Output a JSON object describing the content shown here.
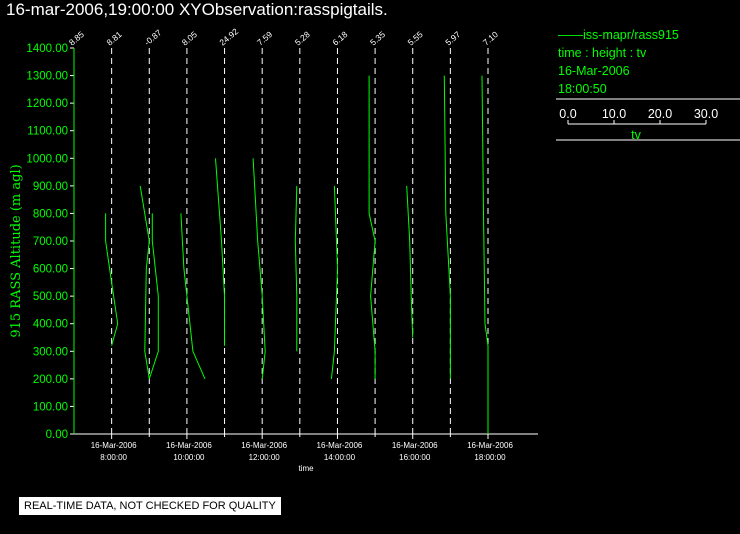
{
  "header": {
    "title": "16-mar-2006,19:00:00  XYObservation:rasspigtails."
  },
  "legend": {
    "series_line": "——iss-mapr/rass915",
    "desc": "time : height : tv",
    "date": "16-Mar-2006",
    "time": "18:00:50",
    "scale_ticks": [
      "0.0",
      "10.0",
      "20.0",
      "30.0"
    ],
    "scale_label": "tv"
  },
  "footer": {
    "notice": "REAL-TIME DATA, NOT CHECKED FOR QUALITY"
  },
  "colors": {
    "background": "#000000",
    "data": "#00ff00",
    "text": "#ffffff"
  },
  "chart_data": {
    "type": "line",
    "title": "16-mar-2006,19:00:00  XYObservation:rasspigtails.",
    "ylabel": "915 RASS Altitude (m agl)",
    "xlabel": "time",
    "ylim": [
      0,
      1400
    ],
    "y_ticks": [
      "0.00",
      "100.00",
      "200.00",
      "300.00",
      "400.00",
      "500.00",
      "600.00",
      "700.00",
      "800.00",
      "900.00",
      "1000.00",
      "1100.00",
      "1200.00",
      "1300.00",
      "1400.00"
    ],
    "x_ticks": [
      {
        "date": "16-Mar-2006",
        "time": "8:00:00",
        "hour": 8
      },
      {
        "date": "16-Mar-2006",
        "time": "10:00:00",
        "hour": 10
      },
      {
        "date": "16-Mar-2006",
        "time": "12:00:00",
        "hour": 12
      },
      {
        "date": "16-Mar-2006",
        "time": "14:00:00",
        "hour": 14
      },
      {
        "date": "16-Mar-2006",
        "time": "16:00:00",
        "hour": 16
      },
      {
        "date": "16-Mar-2006",
        "time": "18:00:00",
        "hour": 18
      }
    ],
    "xlim": [
      7.0,
      19.7
    ],
    "grid": false,
    "profiles": [
      {
        "hour": 7.0,
        "baseline_label": "8.85",
        "points": [
          [
            0,
            1400
          ],
          [
            0,
            0
          ]
        ]
      },
      {
        "hour": 8.0,
        "baseline_label": "8.81",
        "points": [
          [
            -0.4,
            800
          ],
          [
            -0.4,
            700
          ],
          [
            0,
            550
          ],
          [
            0.4,
            400
          ],
          [
            0,
            320
          ]
        ]
      },
      {
        "hour": 9.0,
        "baseline_label": "-0.87",
        "points": [
          [
            -0.6,
            900
          ],
          [
            0,
            700
          ],
          [
            -0.2,
            600
          ],
          [
            -0.3,
            300
          ],
          [
            0,
            200
          ],
          [
            0.6,
            300
          ],
          [
            0.6,
            500
          ],
          [
            0.2,
            700
          ],
          [
            0.2,
            800
          ]
        ]
      },
      {
        "hour": 10.0,
        "baseline_label": "8.05",
        "points": [
          [
            -0.4,
            800
          ],
          [
            -0.2,
            600
          ],
          [
            0,
            500
          ],
          [
            0.2,
            400
          ],
          [
            0.4,
            300
          ],
          [
            1.2,
            200
          ]
        ]
      },
      {
        "hour": 11.0,
        "baseline_label": "24.92",
        "points": [
          [
            -0.6,
            1000
          ],
          [
            -0.2,
            700
          ],
          [
            0,
            500
          ],
          [
            0,
            320
          ]
        ]
      },
      {
        "hour": 12.0,
        "baseline_label": "7.59",
        "points": [
          [
            -0.6,
            1000
          ],
          [
            -0.3,
            700
          ],
          [
            0,
            500
          ],
          [
            0.2,
            300
          ],
          [
            0,
            200
          ]
        ]
      },
      {
        "hour": 13.0,
        "baseline_label": "5.28",
        "points": [
          [
            -0.2,
            900
          ],
          [
            -0.3,
            700
          ],
          [
            -0.2,
            500
          ],
          [
            -0.2,
            300
          ]
        ]
      },
      {
        "hour": 14.0,
        "baseline_label": "6.18",
        "points": [
          [
            -0.2,
            900
          ],
          [
            0,
            600
          ],
          [
            -0.2,
            300
          ],
          [
            -0.4,
            200
          ]
        ]
      },
      {
        "hour": 15.0,
        "baseline_label": "5.35",
        "points": [
          [
            -0.4,
            1300
          ],
          [
            -0.4,
            800
          ],
          [
            0,
            700
          ],
          [
            -0.3,
            500
          ],
          [
            0,
            300
          ],
          [
            0,
            200
          ]
        ]
      },
      {
        "hour": 16.0,
        "baseline_label": "5.55",
        "points": [
          [
            -0.4,
            900
          ],
          [
            -0.2,
            700
          ],
          [
            -0.1,
            500
          ],
          [
            0,
            350
          ]
        ]
      },
      {
        "hour": 17.0,
        "baseline_label": "5.97",
        "points": [
          [
            -0.4,
            1300
          ],
          [
            -0.3,
            800
          ],
          [
            0,
            500
          ],
          [
            0,
            200
          ]
        ]
      },
      {
        "hour": 18.0,
        "baseline_label": "7.10",
        "points": [
          [
            -0.4,
            1300
          ],
          [
            -0.3,
            800
          ],
          [
            -0.2,
            400
          ],
          [
            0,
            320
          ],
          [
            0,
            0
          ]
        ]
      }
    ]
  }
}
